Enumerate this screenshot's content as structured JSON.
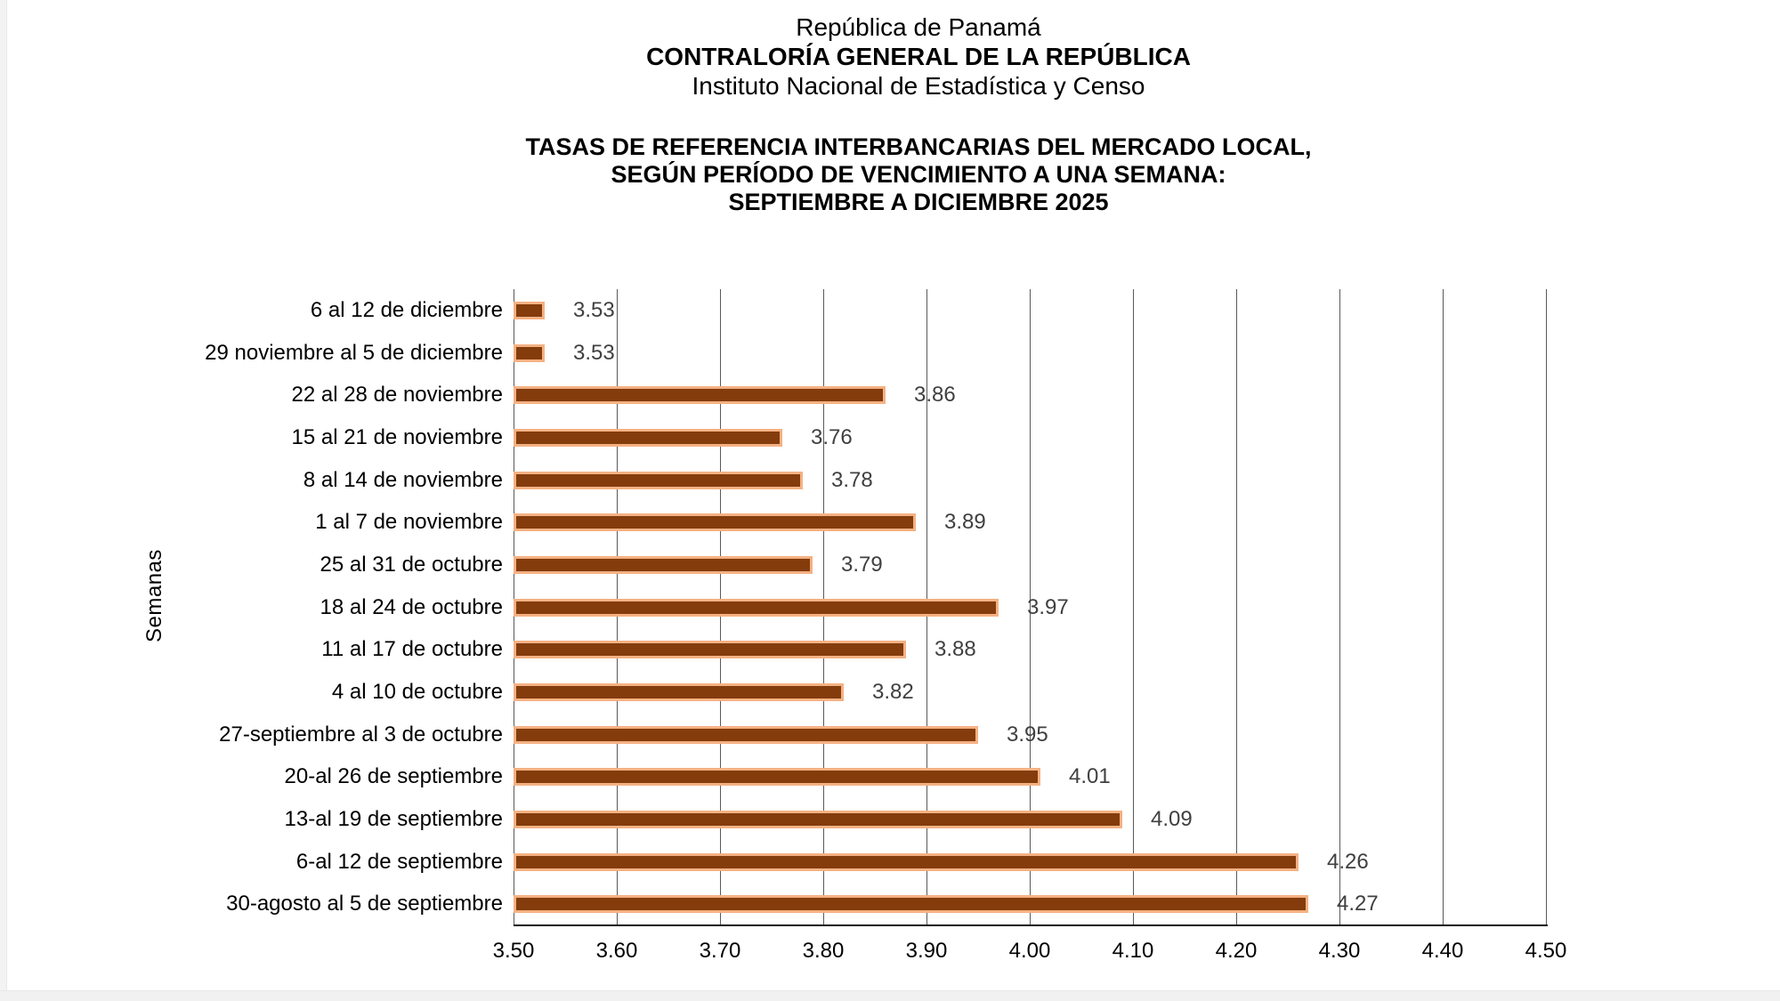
{
  "page": {
    "header": {
      "line1": "República de Panamá",
      "line2": "CONTRALORÍA GENERAL DE LA REPÚBLICA",
      "line3": "Instituto Nacional de Estadística y Censo"
    },
    "title": {
      "line1": "TASAS DE REFERENCIA INTERBANCARIAS DEL MERCADO LOCAL,",
      "line2": "SEGÚN PERÍODO DE VENCIMIENTO A UNA SEMANA:",
      "line3": "SEPTIEMBRE A DICIEMBRE 2025"
    }
  },
  "chart_data": {
    "type": "bar",
    "orientation": "horizontal",
    "title": "TASAS DE REFERENCIA INTERBANCARIAS DEL MERCADO LOCAL, SEGÚN PERÍODO DE VENCIMIENTO A UNA SEMANA: SEPTIEMBRE A DICIEMBRE 2025",
    "xlabel": "",
    "ylabel": "Semanas",
    "xlim": [
      3.5,
      4.5
    ],
    "xtick_step": 0.1,
    "xtick_labels": [
      "3.50",
      "3.60",
      "3.70",
      "3.80",
      "3.90",
      "4.00",
      "4.10",
      "4.20",
      "4.30",
      "4.40",
      "4.50"
    ],
    "grid": true,
    "legend": false,
    "value_labels_shown": true,
    "colors": {
      "bar_fill": "#843C0C",
      "bar_border": "#F4B183",
      "gridline": "#595959",
      "value_label": "#404040",
      "axis_text": "#000000"
    },
    "categories": [
      "6 al 12 de diciembre",
      "29 noviembre al 5 de diciembre",
      "22 al 28 de noviembre",
      "15 al 21 de noviembre",
      "8 al 14 de noviembre",
      "1 al 7 de noviembre",
      "25 al 31 de octubre",
      "18 al 24 de octubre",
      "11 al 17 de octubre",
      "4 al 10 de octubre",
      "27-septiembre al 3 de octubre",
      "20-al 26 de septiembre",
      "13-al 19 de septiembre",
      "6-al 12 de septiembre",
      "30-agosto al 5 de septiembre"
    ],
    "values": [
      3.53,
      3.53,
      3.86,
      3.76,
      3.78,
      3.89,
      3.79,
      3.97,
      3.88,
      3.82,
      3.95,
      4.01,
      4.09,
      4.26,
      4.27
    ]
  }
}
